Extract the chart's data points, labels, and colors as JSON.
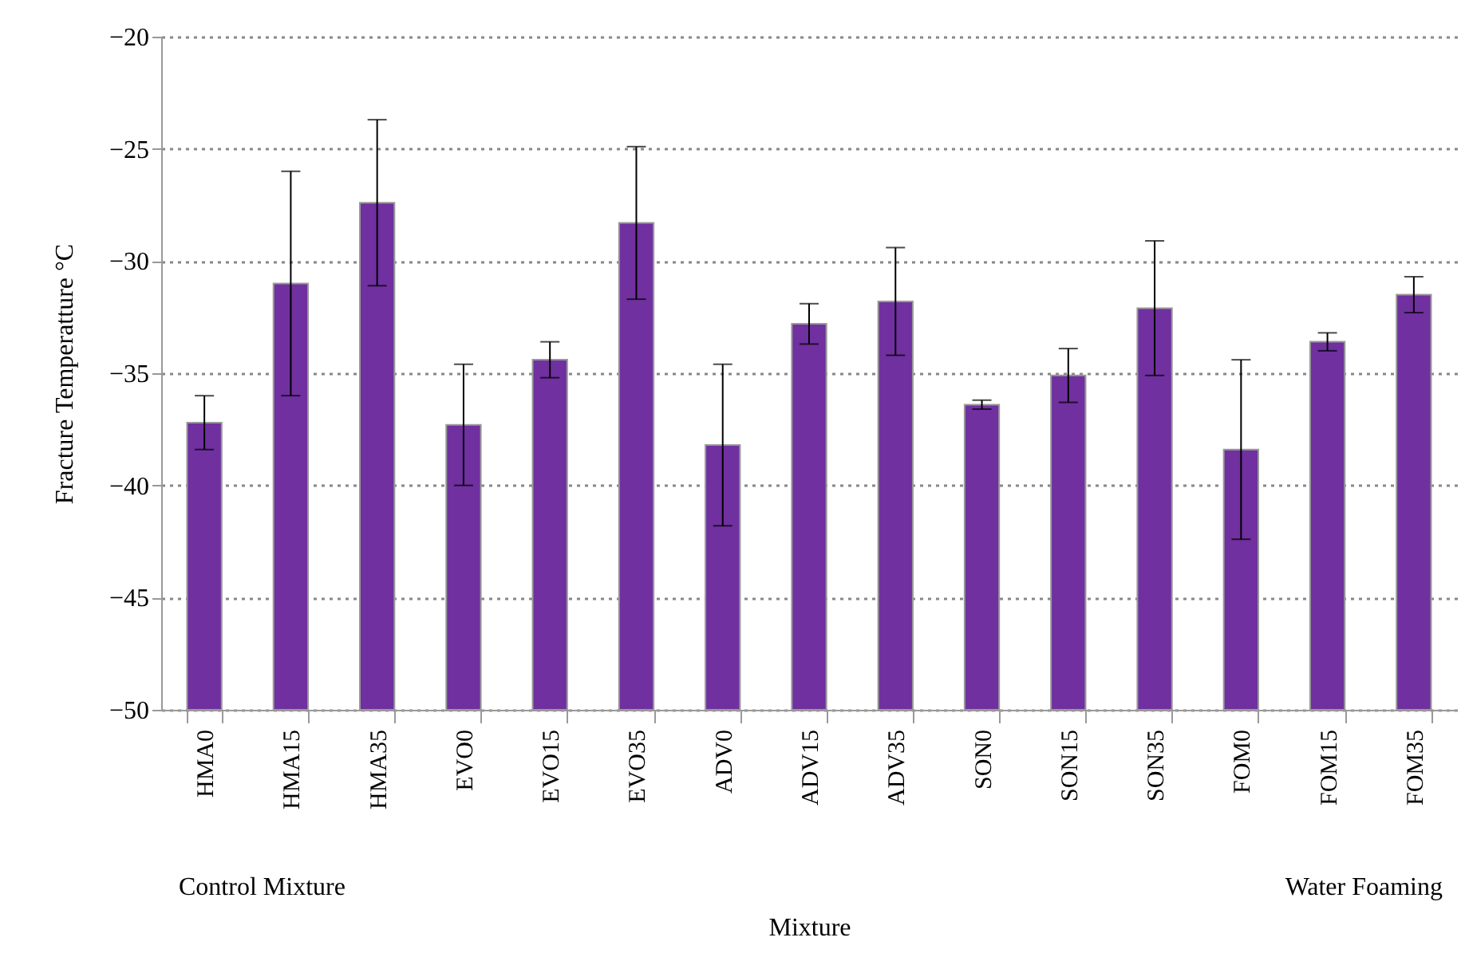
{
  "chart_data": {
    "type": "bar",
    "xlabel": "Mixture",
    "ylabel": "Fracture Temperatture °C",
    "categories": [
      "HMA0",
      "HMA15",
      "HMA35",
      "EVO0",
      "EVO15",
      "EVO35",
      "ADV0",
      "ADV15",
      "ADV35",
      "SON0",
      "SON15",
      "SON35",
      "FOM0",
      "FOM15",
      "FOM35"
    ],
    "values": [
      12.8,
      19.0,
      22.6,
      12.7,
      15.6,
      21.7,
      11.8,
      17.2,
      18.2,
      13.6,
      14.9,
      17.9,
      11.6,
      16.4,
      18.5
    ],
    "base": [
      -50,
      -50,
      -50,
      -50,
      -50,
      -50,
      -50,
      -50,
      -50,
      -50,
      -50,
      -50,
      -50,
      -50,
      -50
    ],
    "errors": [
      1.2,
      5.0,
      3.7,
      2.7,
      0.8,
      3.4,
      3.6,
      0.9,
      2.4,
      0.2,
      1.2,
      3.0,
      4.0,
      0.4,
      0.8
    ],
    "color": "#7030a0",
    "ylim": [
      -50,
      -20
    ],
    "yticks": [
      -50,
      -45,
      -40,
      -35,
      -30,
      -25,
      -20
    ],
    "grid": "y",
    "annotations": [
      "Control Mixture",
      "Water Foaming"
    ]
  }
}
